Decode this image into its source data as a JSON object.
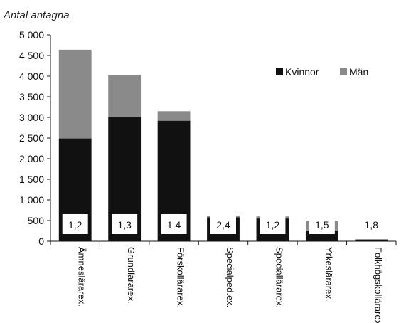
{
  "chart_data": {
    "type": "bar",
    "stacked": true,
    "ylabel": "Antal antagna",
    "ylim": [
      0,
      5000
    ],
    "ytick_step": 500,
    "ytick_labels": [
      "0",
      "500",
      "1 000",
      "1 500",
      "2 000",
      "2 500",
      "3 000",
      "3 500",
      "4 000",
      "4 500",
      "5 000"
    ],
    "categories": [
      "Ämneslärarex.",
      "Grundlärarex.",
      "Förskollärarex.",
      "Specialped.ex.",
      "Speciallärarex.",
      "Yrkeslärarex.",
      "Folkhögskollärarex."
    ],
    "series": [
      {
        "name": "Kvinnor",
        "color": "#111111",
        "values": [
          2490,
          3010,
          2920,
          580,
          550,
          260,
          30
        ]
      },
      {
        "name": "Män",
        "color": "#8a8a8a",
        "values": [
          2150,
          1020,
          230,
          40,
          50,
          240,
          20
        ]
      }
    ],
    "ratio_labels": [
      "1,2",
      "1,3",
      "1,4",
      "2,4",
      "1,2",
      "1,5",
      "1,8"
    ],
    "legend_position": "top-right",
    "grid": false
  }
}
